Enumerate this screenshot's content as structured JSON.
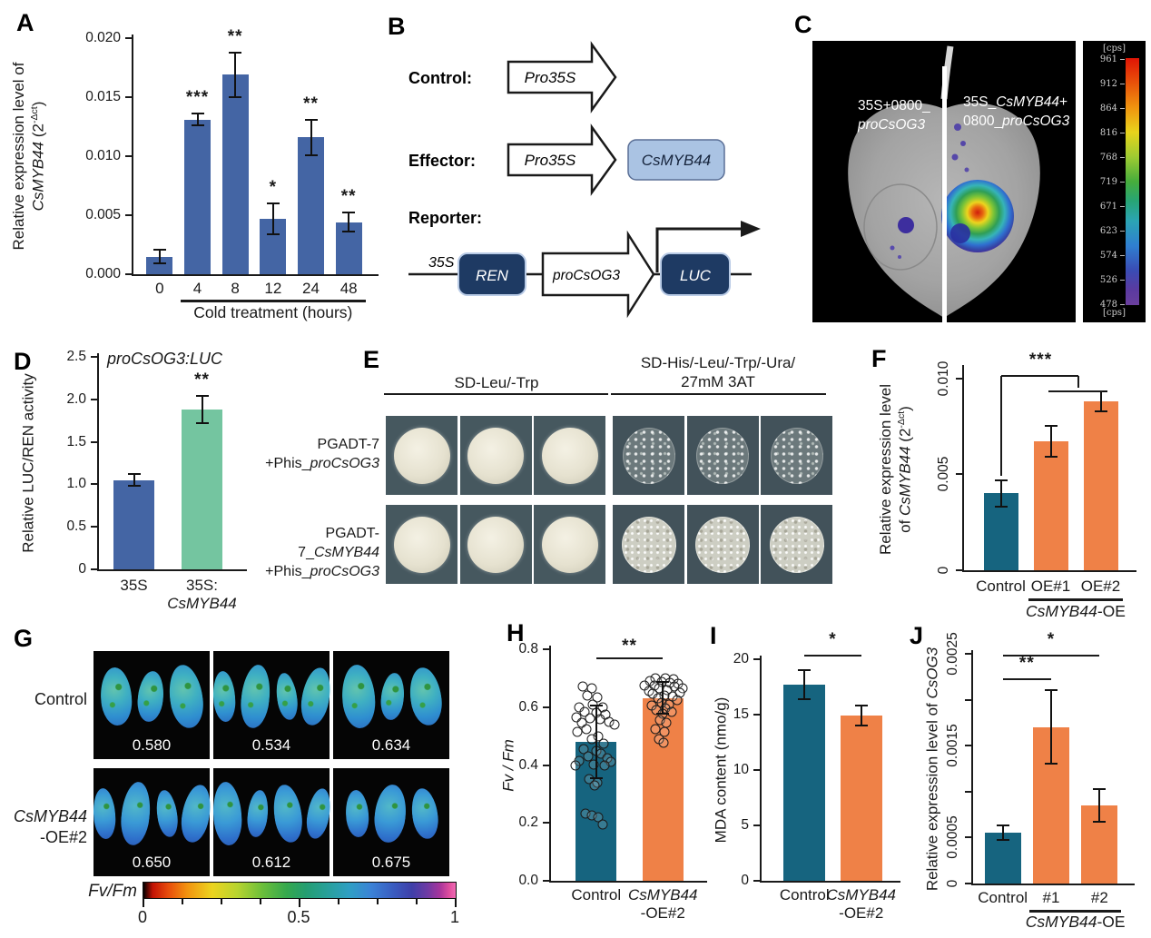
{
  "letters": {
    "A": "A",
    "B": "B",
    "C": "C",
    "D": "D",
    "E": "E",
    "F": "F",
    "G": "G",
    "H": "H",
    "I": "I",
    "J": "J"
  },
  "panelB": {
    "control_label": "Control:",
    "effector_label": "Effector:",
    "reporter_label": "Reporter:",
    "pro35s_1": "Pro35S",
    "pro35s_2": "Pro35S",
    "effector_gene": "CsMYB44",
    "line_35s": "35S",
    "ren": "REN",
    "promoter": "proCsOG3",
    "luc": "LUC"
  },
  "panelC": {
    "left_label": [
      [
        {
          "t": "35S+0800_"
        }
      ],
      [
        {
          "t": "proCsOG3",
          "i": 1
        }
      ]
    ],
    "right_label": [
      [
        {
          "t": "35S_"
        },
        {
          "t": "CsMYB44",
          "i": 1
        },
        {
          "t": "+"
        }
      ],
      [
        {
          "t": "0800_"
        },
        {
          "t": "proCsOG3",
          "i": 1
        }
      ]
    ],
    "scale": {
      "unit_top": "[cps]",
      "unit_bottom": "[cps]",
      "values": [
        "961",
        "912",
        "864",
        "816",
        "768",
        "719",
        "671",
        "623",
        "574",
        "526",
        "478"
      ]
    }
  },
  "panelE": {
    "headers": [
      {
        "lines": [
          "SD-Leu/-Trp"
        ]
      },
      {
        "lines": [
          "SD-His/-Leu/-Trp/-Ura/",
          "27mM 3AT"
        ]
      }
    ],
    "rows": [
      {
        "label_lines": [
          [
            {
              "t": "PGADT-7"
            }
          ],
          [
            {
              "t": "+Phis_"
            },
            {
              "t": "proCsOG3",
              "i": 1
            }
          ]
        ],
        "left_type": "solid",
        "right_type": "sparse"
      },
      {
        "label_lines": [
          [
            {
              "t": "PGADT-7_"
            },
            {
              "t": "CsMYB44",
              "i": 1
            }
          ],
          [
            {
              "t": "+Phis_"
            },
            {
              "t": "proCsOG3",
              "i": 1
            }
          ]
        ],
        "left_type": "solid",
        "right_type": "dense"
      }
    ]
  },
  "panelG": {
    "rows": [
      {
        "label_lines": [
          [
            {
              "t": "Control"
            }
          ]
        ],
        "tiles": [
          {
            "value": "0.580",
            "leaves": 3
          },
          {
            "value": "0.534",
            "leaves": 4
          },
          {
            "value": "0.634",
            "leaves": 3
          }
        ]
      },
      {
        "label_lines": [
          [
            {
              "t": "CsMYB44",
              "i": 1
            }
          ],
          [
            {
              "t": "-OE#2"
            }
          ]
        ],
        "tiles": [
          {
            "value": "0.650",
            "leaves": 4
          },
          {
            "value": "0.612",
            "leaves": 4
          },
          {
            "value": "0.675",
            "leaves": 3
          }
        ]
      }
    ],
    "colorbar": {
      "label": "Fv/Fm",
      "ticks": [
        "0",
        "0.5",
        "1"
      ]
    }
  },
  "chart_data": {
    "A": {
      "type": "bar",
      "ylabel_lines": [
        [
          {
            "t": "Relative expression level of"
          }
        ],
        [
          {
            "t": "CsMYB44",
            "i": 1
          },
          {
            "t": " (2"
          },
          {
            "t": "-Δct",
            "sup": 1
          },
          {
            "t": ")"
          }
        ]
      ],
      "yticks": [
        {
          "v": 0,
          "label": "0.000"
        },
        {
          "v": 0.005,
          "label": "0.005"
        },
        {
          "v": 0.01,
          "label": "0.010"
        },
        {
          "v": 0.015,
          "label": "0.015"
        },
        {
          "v": 0.02,
          "label": "0.020"
        }
      ],
      "ylim": [
        0,
        0.02
      ],
      "categories": [
        {
          "lines": [
            [
              {
                "t": "0"
              }
            ]
          ]
        },
        {
          "lines": [
            [
              {
                "t": "4"
              }
            ]
          ]
        },
        {
          "lines": [
            [
              {
                "t": "8"
              }
            ]
          ]
        },
        {
          "lines": [
            [
              {
                "t": "12"
              }
            ]
          ]
        },
        {
          "lines": [
            [
              {
                "t": "24"
              }
            ]
          ]
        },
        {
          "lines": [
            [
              {
                "t": "48"
              }
            ]
          ]
        }
      ],
      "values": [
        0.0015,
        0.0131,
        0.0169,
        0.0047,
        0.0116,
        0.0044
      ],
      "errors": [
        0.0006,
        0.0005,
        0.0019,
        0.0013,
        0.0015,
        0.0008
      ],
      "sig": [
        "",
        "***",
        "**",
        "*",
        "**",
        "**"
      ],
      "colors": [
        "#4465a4",
        "#4465a4",
        "#4465a4",
        "#4465a4",
        "#4465a4",
        "#4465a4"
      ],
      "group": {
        "from": 1,
        "to": 5,
        "label": [
          {
            "t": "Cold treatment (hours)"
          }
        ]
      }
    },
    "D": {
      "type": "bar",
      "title": [
        {
          "t": "proCsOG3:LUC",
          "i": 1
        }
      ],
      "ylabel_lines": [
        [
          {
            "t": "Relative LUC/REN activity"
          }
        ]
      ],
      "yticks": [
        {
          "v": 0,
          "label": "0"
        },
        {
          "v": 0.5,
          "label": "0.5"
        },
        {
          "v": 1,
          "label": "1.0"
        },
        {
          "v": 1.5,
          "label": "1.5"
        },
        {
          "v": 2,
          "label": "2.0"
        },
        {
          "v": 2.5,
          "label": "2.5"
        }
      ],
      "ylim": [
        0,
        2.5
      ],
      "categories": [
        {
          "lines": [
            [
              {
                "t": "35S"
              }
            ]
          ]
        },
        {
          "lines": [
            [
              {
                "t": "35S:"
              }
            ],
            [
              {
                "t": "CsMYB44",
                "i": 1
              }
            ]
          ]
        }
      ],
      "values": [
        1.05,
        1.88
      ],
      "errors": [
        0.07,
        0.16
      ],
      "sig": [
        "",
        "**"
      ],
      "colors": [
        "#4465a4",
        "#74c5a0"
      ]
    },
    "F": {
      "type": "bar",
      "ylabel_lines": [
        [
          {
            "t": "Relative expression level"
          }
        ],
        [
          {
            "t": "of "
          },
          {
            "t": "CsMYB44",
            "i": 1
          },
          {
            "t": " (2"
          },
          {
            "t": "-Δct",
            "sup": 1
          },
          {
            "t": ")"
          }
        ]
      ],
      "yticks": [
        {
          "v": 0,
          "label": "0"
        },
        {
          "v": 0.005,
          "label": "0.005"
        },
        {
          "v": 0.01,
          "label": "0.010"
        }
      ],
      "ylim": [
        0,
        0.0105
      ],
      "categories": [
        {
          "lines": [
            [
              {
                "t": "Control"
              }
            ]
          ]
        },
        {
          "lines": [
            [
              {
                "t": "OE#1"
              }
            ]
          ]
        },
        {
          "lines": [
            [
              {
                "t": "OE#2"
              }
            ]
          ]
        }
      ],
      "values": [
        0.004,
        0.0067,
        0.0088
      ],
      "errors": [
        0.0007,
        0.0008,
        0.0005
      ],
      "sig": [
        "",
        "",
        ""
      ],
      "colors": [
        "#16647f",
        "#ef8147",
        "#ef8147"
      ],
      "annotations": [
        {
          "type": "vline",
          "x": 0,
          "y1": 0.0049,
          "y2": 0.0101
        },
        {
          "type": "hline",
          "x1": 0,
          "x2": 1.55,
          "y": 0.0101
        },
        {
          "type": "vline",
          "x": 1.55,
          "y1": 0.0095,
          "y2": 0.0101
        },
        {
          "type": "hline",
          "x1": 0.95,
          "x2": 2.05,
          "y": 0.0093
        },
        {
          "type": "label",
          "x": 0.8,
          "y": 0.0104,
          "text": "***"
        }
      ],
      "group": {
        "from": 1,
        "to": 2,
        "label": [
          {
            "t": "CsMYB44",
            "i": 1
          },
          {
            "t": "-OE"
          }
        ]
      }
    },
    "H": {
      "type": "bar",
      "ylabel_lines": [
        [
          {
            "t": "Fv / Fm",
            "i": 1
          }
        ]
      ],
      "yticks": [
        {
          "v": 0,
          "label": "0.0"
        },
        {
          "v": 0.2,
          "label": "0.2"
        },
        {
          "v": 0.4,
          "label": "0.4"
        },
        {
          "v": 0.6,
          "label": "0.6"
        },
        {
          "v": 0.8,
          "label": "0.8"
        }
      ],
      "ylim": [
        0,
        0.8
      ],
      "categories": [
        {
          "lines": [
            [
              {
                "t": "Control"
              }
            ]
          ]
        },
        {
          "lines": [
            [
              {
                "t": "CsMYB44",
                "i": 1
              }
            ],
            [
              {
                "t": "-OE#2"
              }
            ]
          ]
        }
      ],
      "values": [
        0.48,
        0.632
      ],
      "errors": [
        0.125,
        0.055
      ],
      "sig": [
        "",
        ""
      ],
      "colors": [
        "#16647f",
        "#ef8147"
      ],
      "scatter": [
        [
          [
            -0.55,
            0.67
          ],
          [
            -0.2,
            0.665
          ],
          [
            -0.38,
            0.64
          ],
          [
            0.05,
            0.635
          ],
          [
            -0.15,
            0.61
          ],
          [
            -0.72,
            0.6
          ],
          [
            0.28,
            0.6
          ],
          [
            -0.5,
            0.585
          ],
          [
            0.0,
            0.58
          ],
          [
            0.38,
            0.575
          ],
          [
            -0.85,
            0.565
          ],
          [
            -0.25,
            0.562
          ],
          [
            0.15,
            0.558
          ],
          [
            0.55,
            0.55
          ],
          [
            -0.62,
            0.545
          ],
          [
            0.78,
            0.54
          ],
          [
            -0.4,
            0.525
          ],
          [
            -0.78,
            0.515
          ],
          [
            0.08,
            0.5
          ],
          [
            -0.18,
            0.49
          ],
          [
            0.3,
            0.475
          ],
          [
            -0.52,
            0.455
          ],
          [
            0.0,
            0.45
          ],
          [
            0.2,
            0.44
          ],
          [
            -0.32,
            0.43
          ],
          [
            0.46,
            0.425
          ],
          [
            -0.7,
            0.415
          ],
          [
            0.62,
            0.41
          ],
          [
            -0.1,
            0.402
          ],
          [
            0.34,
            0.4
          ],
          [
            -0.86,
            0.398
          ],
          [
            -0.28,
            0.352
          ],
          [
            0.04,
            0.34
          ],
          [
            -0.06,
            0.33
          ],
          [
            -0.46,
            0.232
          ],
          [
            -0.2,
            0.225
          ],
          [
            0.1,
            0.22
          ],
          [
            0.26,
            0.195
          ]
        ],
        [
          [
            -0.3,
            0.7
          ],
          [
            0.12,
            0.7
          ],
          [
            0.46,
            0.695
          ],
          [
            -0.55,
            0.69
          ],
          [
            -0.05,
            0.688
          ],
          [
            0.3,
            0.685
          ],
          [
            0.66,
            0.68
          ],
          [
            -0.76,
            0.676
          ],
          [
            -0.35,
            0.674
          ],
          [
            0.5,
            0.67
          ],
          [
            0.84,
            0.666
          ],
          [
            -0.16,
            0.664
          ],
          [
            0.2,
            0.66
          ],
          [
            -0.6,
            0.655
          ],
          [
            0.72,
            0.65
          ],
          [
            -0.42,
            0.645
          ],
          [
            0.05,
            0.64
          ],
          [
            0.4,
            0.636
          ],
          [
            -0.22,
            0.63
          ],
          [
            0.6,
            0.625
          ],
          [
            -0.06,
            0.615
          ],
          [
            0.26,
            0.61
          ],
          [
            -0.46,
            0.605
          ],
          [
            0.1,
            0.596
          ],
          [
            -0.26,
            0.59
          ],
          [
            0.36,
            0.585
          ],
          [
            0.0,
            0.576
          ],
          [
            -0.12,
            0.556
          ],
          [
            0.16,
            0.545
          ],
          [
            -0.3,
            0.525
          ],
          [
            0.06,
            0.515
          ],
          [
            -0.16,
            0.49
          ],
          [
            0.02,
            0.476
          ]
        ]
      ],
      "annotations": [
        {
          "type": "hline",
          "x1": 0,
          "x2": 1,
          "y": 0.77
        },
        {
          "type": "label",
          "x": 0.5,
          "y": 0.775,
          "text": "**"
        }
      ]
    },
    "I": {
      "type": "bar",
      "ylabel_lines": [
        [
          {
            "t": "MDA content (nmo/g)"
          }
        ]
      ],
      "yticks": [
        {
          "v": 0,
          "label": "0"
        },
        {
          "v": 5,
          "label": "5"
        },
        {
          "v": 10,
          "label": "10"
        },
        {
          "v": 15,
          "label": "15"
        },
        {
          "v": 20,
          "label": "20"
        }
      ],
      "ylim": [
        0,
        20
      ],
      "categories": [
        {
          "lines": [
            [
              {
                "t": "Control"
              }
            ]
          ]
        },
        {
          "lines": [
            [
              {
                "t": "CsMYB44",
                "i": 1
              }
            ],
            [
              {
                "t": "-OE#2"
              }
            ]
          ]
        }
      ],
      "values": [
        17.7,
        14.9
      ],
      "errors": [
        1.3,
        0.9
      ],
      "sig": [
        "",
        ""
      ],
      "colors": [
        "#16647f",
        "#ef8147"
      ],
      "annotations": [
        {
          "type": "hline",
          "x1": 0,
          "x2": 1,
          "y": 20.3
        },
        {
          "type": "label",
          "x": 0.5,
          "y": 20.8,
          "text": "*"
        }
      ]
    },
    "J": {
      "type": "bar",
      "ylabel_lines": [
        [
          {
            "t": "Relative expression level of "
          },
          {
            "t": "CsOG3",
            "i": 1
          }
        ]
      ],
      "yticks": [
        {
          "v": 0,
          "label": "0"
        },
        {
          "v": 0.0005,
          "label": "0.0005"
        },
        {
          "v": 0.001,
          "label": ""
        },
        {
          "v": 0.0015,
          "label": "0.0015"
        },
        {
          "v": 0.002,
          "label": ""
        },
        {
          "v": 0.0025,
          "label": "0.0025"
        }
      ],
      "ylim": [
        0,
        0.0025
      ],
      "categories": [
        {
          "lines": [
            [
              {
                "t": "Control"
              }
            ]
          ]
        },
        {
          "lines": [
            [
              {
                "t": "#1"
              }
            ]
          ]
        },
        {
          "lines": [
            [
              {
                "t": "#2"
              }
            ]
          ]
        }
      ],
      "values": [
        0.00055,
        0.0017,
        0.00085
      ],
      "errors": [
        8e-05,
        0.0004,
        0.00018
      ],
      "sig": [
        "",
        "",
        ""
      ],
      "colors": [
        "#16647f",
        "#ef8147",
        "#ef8147"
      ],
      "annotations": [
        {
          "type": "hline",
          "x1": 0,
          "x2": 1,
          "y": 0.00222
        },
        {
          "type": "label",
          "x": 0.5,
          "y": 0.00228,
          "text": "**"
        },
        {
          "type": "hline",
          "x1": 0,
          "x2": 2,
          "y": 0.00248
        },
        {
          "type": "label",
          "x": 1,
          "y": 0.00254,
          "text": "*"
        }
      ],
      "group": {
        "from": 1,
        "to": 2,
        "label": [
          {
            "t": "CsMYB44",
            "i": 1
          },
          {
            "t": "-OE"
          }
        ]
      }
    }
  }
}
